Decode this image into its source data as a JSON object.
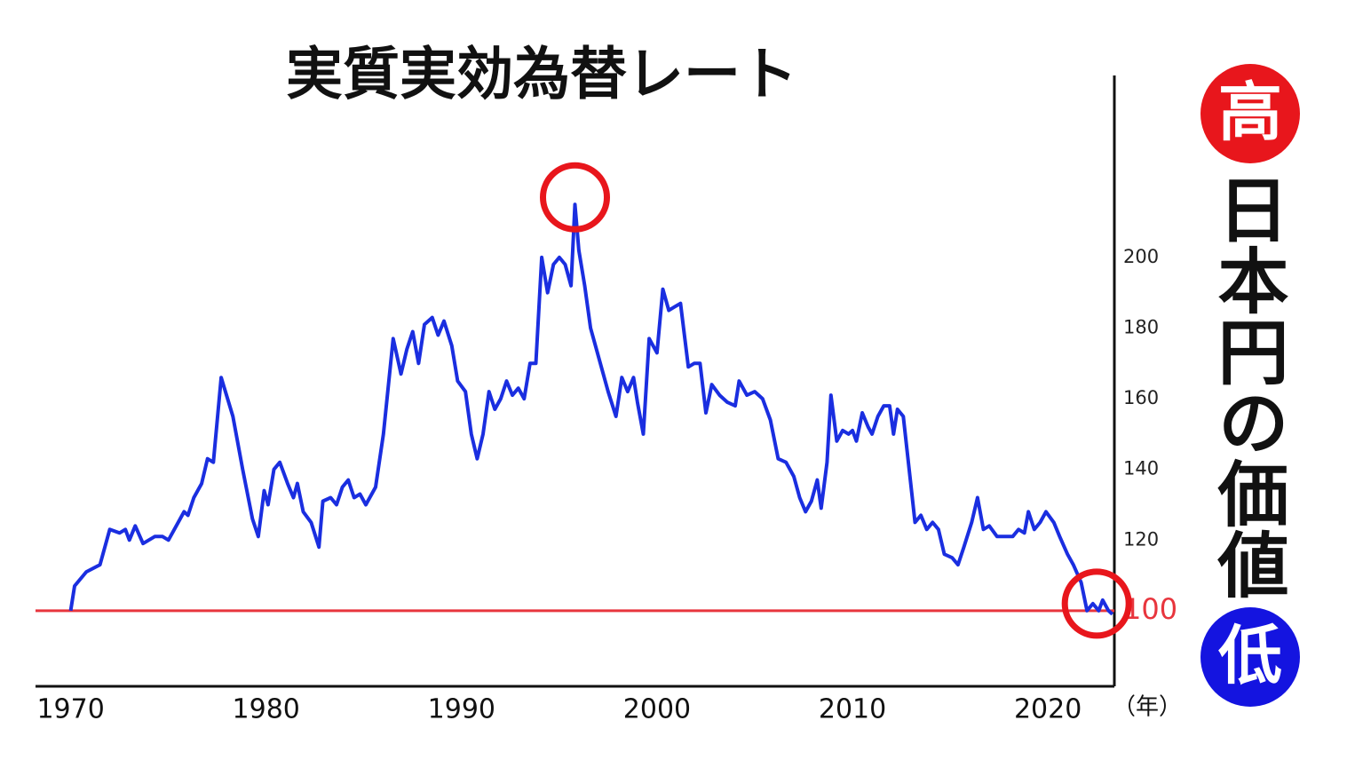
{
  "chart_data": {
    "type": "line",
    "title": "実質実効為替レート",
    "x_unit": "（年）",
    "high_label": "高",
    "vertical_label": "日本円の価値",
    "low_label": "低",
    "xlim": [
      1968.2,
      2023.4
    ],
    "xticks": [
      1970,
      1980,
      1990,
      2000,
      2010,
      2020
    ],
    "ylim": [
      78.6,
      251.5
    ],
    "yticks": [
      100,
      120,
      140,
      160,
      180,
      200
    ],
    "reference_line": {
      "value": 100,
      "color": "#e8353d"
    },
    "highlights": [
      {
        "x": 1995.8,
        "y": 215
      },
      {
        "x": 2022.5,
        "y": 100
      }
    ],
    "highlight_color": "#e8161c",
    "series": [
      {
        "name": "実質実効為替レート",
        "color": "#1a2ee0",
        "x": [
          1970.0,
          1970.2,
          1970.8,
          1971.5,
          1972.0,
          1972.5,
          1972.8,
          1973.0,
          1973.3,
          1973.7,
          1974.3,
          1974.7,
          1975.0,
          1975.5,
          1975.8,
          1976.0,
          1976.3,
          1976.7,
          1977.0,
          1977.3,
          1977.7,
          1978.3,
          1978.8,
          1979.3,
          1979.6,
          1979.9,
          1980.1,
          1980.4,
          1980.7,
          1981.1,
          1981.4,
          1981.6,
          1981.9,
          1982.3,
          1982.7,
          1982.9,
          1983.3,
          1983.6,
          1983.9,
          1984.2,
          1984.5,
          1984.8,
          1985.1,
          1985.6,
          1986.0,
          1986.5,
          1986.9,
          1987.2,
          1987.5,
          1987.8,
          1988.1,
          1988.5,
          1988.8,
          1989.1,
          1989.5,
          1989.8,
          1990.2,
          1990.5,
          1990.8,
          1991.1,
          1991.4,
          1991.7,
          1992.0,
          1992.3,
          1992.6,
          1992.9,
          1993.2,
          1993.5,
          1993.8,
          1994.1,
          1994.4,
          1994.7,
          1995.0,
          1995.3,
          1995.6,
          1995.8,
          1996.0,
          1996.3,
          1996.6,
          1997.0,
          1997.5,
          1997.9,
          1998.2,
          1998.5,
          1998.8,
          1999.0,
          1999.3,
          1999.6,
          2000.0,
          2000.3,
          2000.6,
          2000.9,
          2001.2,
          2001.6,
          2001.9,
          2002.2,
          2002.5,
          2002.8,
          2003.2,
          2003.6,
          2004.0,
          2004.2,
          2004.6,
          2005.0,
          2005.4,
          2005.8,
          2006.2,
          2006.6,
          2007.0,
          2007.3,
          2007.6,
          2007.9,
          2008.2,
          2008.4,
          2008.7,
          2008.9,
          2009.2,
          2009.5,
          2009.8,
          2010.0,
          2010.2,
          2010.5,
          2010.8,
          2011.0,
          2011.3,
          2011.6,
          2011.9,
          2012.1,
          2012.3,
          2012.6,
          2012.9,
          2013.2,
          2013.5,
          2013.8,
          2014.1,
          2014.4,
          2014.7,
          2015.1,
          2015.4,
          2015.7,
          2016.1,
          2016.4,
          2016.7,
          2017.0,
          2017.4,
          2017.8,
          2018.2,
          2018.5,
          2018.8,
          2019.0,
          2019.3,
          2019.6,
          2019.9,
          2020.3,
          2020.6,
          2021.0,
          2021.3,
          2021.7,
          2022.0,
          2022.3,
          2022.6,
          2022.8,
          2023.1,
          2023.3
        ],
        "values": [
          100,
          107,
          111,
          113,
          123,
          122,
          123,
          120,
          124,
          119,
          121,
          121,
          120,
          125,
          128,
          127,
          132,
          136,
          143,
          142,
          166,
          155,
          140,
          126,
          121,
          134,
          130,
          140,
          142,
          136,
          132,
          136,
          128,
          125,
          118,
          131,
          132,
          130,
          135,
          137,
          132,
          133,
          130,
          135,
          150,
          177,
          167,
          174,
          179,
          170,
          181,
          183,
          178,
          182,
          175,
          165,
          162,
          150,
          143,
          150,
          162,
          157,
          160,
          165,
          161,
          163,
          160,
          170,
          170,
          200,
          190,
          198,
          200,
          198,
          192,
          215,
          202,
          192,
          180,
          172,
          162,
          155,
          166,
          162,
          166,
          159,
          150,
          177,
          173,
          191,
          185,
          186,
          187,
          169,
          170,
          170,
          156,
          164,
          161,
          159,
          158,
          165,
          161,
          162,
          160,
          154,
          143,
          142,
          138,
          132,
          128,
          131,
          137,
          129,
          142,
          161,
          148,
          151,
          150,
          151,
          148,
          156,
          152,
          150,
          155,
          158,
          158,
          150,
          157,
          155,
          140,
          125,
          127,
          123,
          125,
          123,
          116,
          115,
          113,
          118,
          125,
          132,
          123,
          124,
          121,
          121,
          121,
          123,
          122,
          128,
          123,
          125,
          128,
          125,
          121,
          116,
          113,
          108,
          100,
          102,
          100,
          103,
          100,
          99
        ]
      }
    ]
  }
}
